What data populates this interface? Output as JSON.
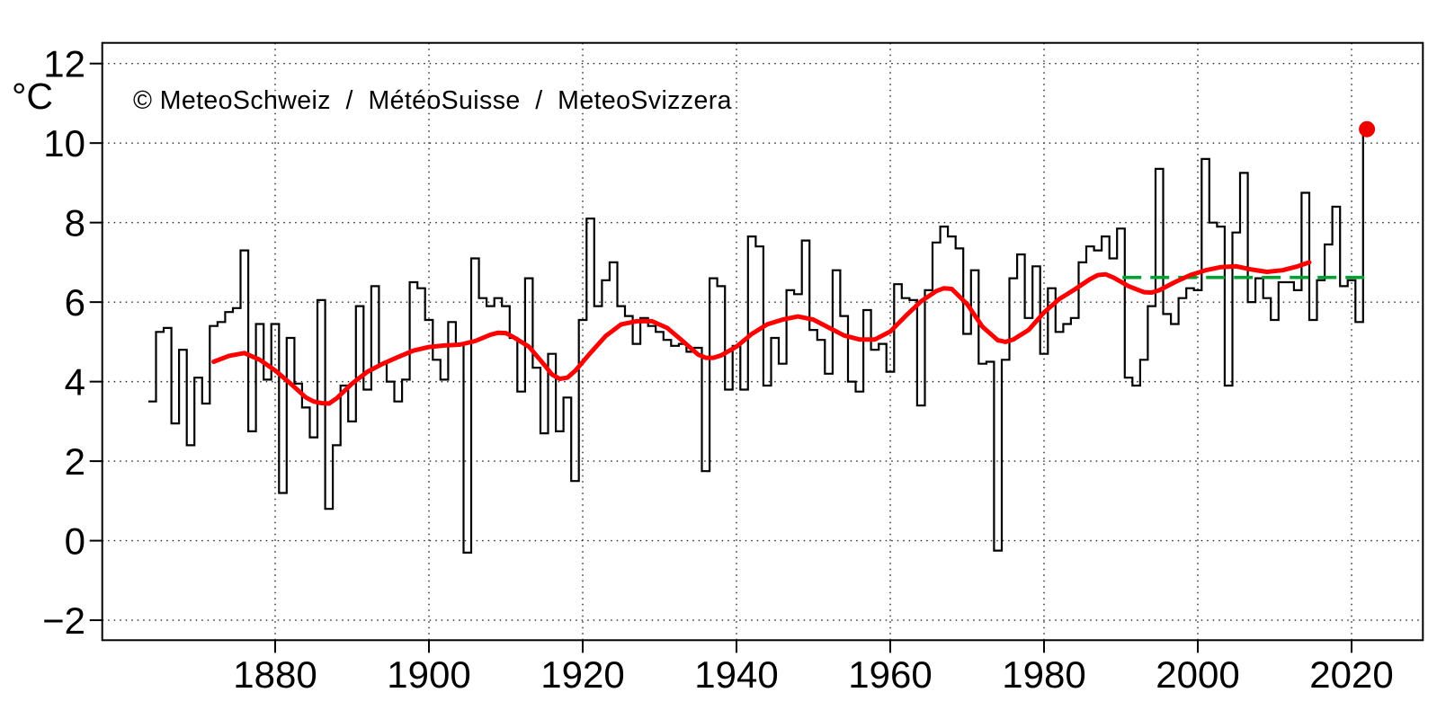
{
  "source_label": "© MeteoSchweiz  /  MétéoSuisse  /  MeteoSvizzera",
  "accent_colors": {
    "series_step": "#000000",
    "smoothed_trend": "#ff0000",
    "norm_line": "#00a032",
    "record_dot": "#ee0000",
    "grid": "#222222",
    "text": "#000000",
    "background": "#ffffff"
  },
  "chart_data": {
    "type": "line",
    "subtype": "step",
    "title": "",
    "xlabel": "",
    "ylabel": "°C",
    "grid": "dotted",
    "legend": "none",
    "xlim": [
      1857.5,
      2029.3
    ],
    "ylim": [
      -2.5,
      12.5
    ],
    "x_ticks": [
      1880,
      1900,
      1920,
      1940,
      1960,
      1980,
      2000,
      2020
    ],
    "x_tick_labels": [
      "1880",
      "1900",
      "1920",
      "1940",
      "1960",
      "1980",
      "2000",
      "2020"
    ],
    "y_ticks": [
      -2,
      0,
      2,
      4,
      6,
      8,
      10,
      12
    ],
    "y_tick_labels": [
      "−2",
      "0",
      "2",
      "4",
      "6",
      "8",
      "10",
      "12"
    ],
    "series": [
      {
        "name": "annual_mean",
        "label": "annual temperature (step curve)",
        "type": "step",
        "color": "#000000",
        "start_year": 1864,
        "end_year": 2022,
        "values": [
          3.5,
          5.25,
          5.35,
          2.95,
          4.8,
          2.4,
          4.1,
          3.45,
          5.4,
          5.5,
          5.75,
          5.85,
          7.3,
          2.75,
          5.45,
          4.05,
          5.45,
          1.2,
          5.1,
          3.95,
          3.35,
          2.6,
          6.05,
          0.8,
          2.4,
          3.9,
          3.0,
          5.9,
          3.8,
          6.4,
          4.45,
          4.0,
          3.5,
          4.05,
          6.5,
          6.35,
          5.55,
          4.55,
          4.05,
          5.5,
          4.95,
          -0.3,
          7.1,
          6.1,
          5.9,
          6.1,
          5.9,
          5.1,
          3.75,
          6.6,
          4.35,
          2.7,
          4.7,
          2.75,
          3.6,
          1.5,
          5.55,
          8.1,
          5.9,
          6.55,
          7.0,
          5.9,
          5.65,
          4.95,
          5.6,
          5.4,
          5.25,
          5.05,
          4.9,
          4.95,
          4.75,
          4.85,
          1.75,
          6.6,
          6.4,
          3.8,
          4.9,
          3.8,
          7.65,
          7.4,
          3.9,
          5.1,
          4.45,
          6.3,
          6.2,
          7.55,
          5.3,
          5.05,
          4.2,
          6.8,
          5.65,
          4.0,
          3.75,
          5.8,
          4.8,
          4.95,
          4.25,
          6.45,
          6.1,
          6.05,
          3.4,
          6.3,
          7.5,
          7.9,
          7.65,
          7.35,
          5.2,
          6.8,
          4.45,
          4.5,
          -0.25,
          4.55,
          6.6,
          7.2,
          5.6,
          6.9,
          4.7,
          6.35,
          5.25,
          5.45,
          5.6,
          7.0,
          7.4,
          7.3,
          7.65,
          7.1,
          7.85,
          4.1,
          3.9,
          4.55,
          5.9,
          9.35,
          5.7,
          5.45,
          6.1,
          6.35,
          6.3,
          9.6,
          8.0,
          7.9,
          3.9,
          7.75,
          9.25,
          6.0,
          6.6,
          6.1,
          5.55,
          6.5,
          6.5,
          6.3,
          8.75,
          5.55,
          6.55,
          7.45,
          8.4,
          6.4,
          6.55,
          5.5,
          10.35
        ]
      },
      {
        "name": "smoothed_trend",
        "label": "smoothed trend (lowpass)",
        "type": "smooth-line",
        "color": "#ff0000",
        "points": [
          [
            1872,
            4.5
          ],
          [
            1874,
            4.65
          ],
          [
            1876,
            4.72
          ],
          [
            1878,
            4.55
          ],
          [
            1880,
            4.28
          ],
          [
            1882,
            3.95
          ],
          [
            1884,
            3.6
          ],
          [
            1885,
            3.5
          ],
          [
            1886,
            3.46
          ],
          [
            1887,
            3.45
          ],
          [
            1888,
            3.58
          ],
          [
            1890,
            3.95
          ],
          [
            1892,
            4.25
          ],
          [
            1894,
            4.45
          ],
          [
            1896,
            4.62
          ],
          [
            1898,
            4.78
          ],
          [
            1900,
            4.87
          ],
          [
            1902,
            4.91
          ],
          [
            1904,
            4.93
          ],
          [
            1906,
            5.02
          ],
          [
            1908,
            5.18
          ],
          [
            1909,
            5.23
          ],
          [
            1910,
            5.22
          ],
          [
            1911,
            5.12
          ],
          [
            1913,
            4.88
          ],
          [
            1915,
            4.42
          ],
          [
            1916,
            4.18
          ],
          [
            1917,
            4.07
          ],
          [
            1918,
            4.1
          ],
          [
            1919,
            4.27
          ],
          [
            1921,
            4.72
          ],
          [
            1923,
            5.15
          ],
          [
            1925,
            5.44
          ],
          [
            1927,
            5.52
          ],
          [
            1929,
            5.52
          ],
          [
            1931,
            5.35
          ],
          [
            1933,
            5.02
          ],
          [
            1935,
            4.68
          ],
          [
            1936,
            4.6
          ],
          [
            1937,
            4.6
          ],
          [
            1938,
            4.66
          ],
          [
            1940,
            4.88
          ],
          [
            1942,
            5.2
          ],
          [
            1944,
            5.44
          ],
          [
            1946,
            5.56
          ],
          [
            1948,
            5.64
          ],
          [
            1950,
            5.56
          ],
          [
            1952,
            5.36
          ],
          [
            1954,
            5.16
          ],
          [
            1956,
            5.06
          ],
          [
            1958,
            5.06
          ],
          [
            1960,
            5.26
          ],
          [
            1962,
            5.65
          ],
          [
            1964,
            6.02
          ],
          [
            1966,
            6.28
          ],
          [
            1967,
            6.35
          ],
          [
            1968,
            6.33
          ],
          [
            1970,
            5.95
          ],
          [
            1972,
            5.38
          ],
          [
            1974,
            5.04
          ],
          [
            1975,
            5.0
          ],
          [
            1976,
            5.06
          ],
          [
            1978,
            5.3
          ],
          [
            1980,
            5.74
          ],
          [
            1982,
            6.08
          ],
          [
            1984,
            6.32
          ],
          [
            1986,
            6.58
          ],
          [
            1987,
            6.68
          ],
          [
            1988,
            6.7
          ],
          [
            1989,
            6.62
          ],
          [
            1991,
            6.4
          ],
          [
            1993,
            6.25
          ],
          [
            1994,
            6.24
          ],
          [
            1995,
            6.3
          ],
          [
            1997,
            6.5
          ],
          [
            1999,
            6.68
          ],
          [
            2001,
            6.8
          ],
          [
            2003,
            6.88
          ],
          [
            2005,
            6.9
          ],
          [
            2007,
            6.82
          ],
          [
            2009,
            6.76
          ],
          [
            2011,
            6.8
          ],
          [
            2013,
            6.9
          ],
          [
            2014.5,
            7.0
          ]
        ]
      },
      {
        "name": "norm_1991_2020",
        "label": "norm line (dashed)",
        "type": "dashed-horizontal-line",
        "color": "#00a032",
        "value": 6.62,
        "from_year": 1990.2,
        "to_year": 2022.2
      },
      {
        "name": "record_year_marker",
        "label": "latest year record dot",
        "type": "dot",
        "color": "#ee0000",
        "year": 2022,
        "value": 10.35,
        "radius_px": 9
      }
    ]
  }
}
